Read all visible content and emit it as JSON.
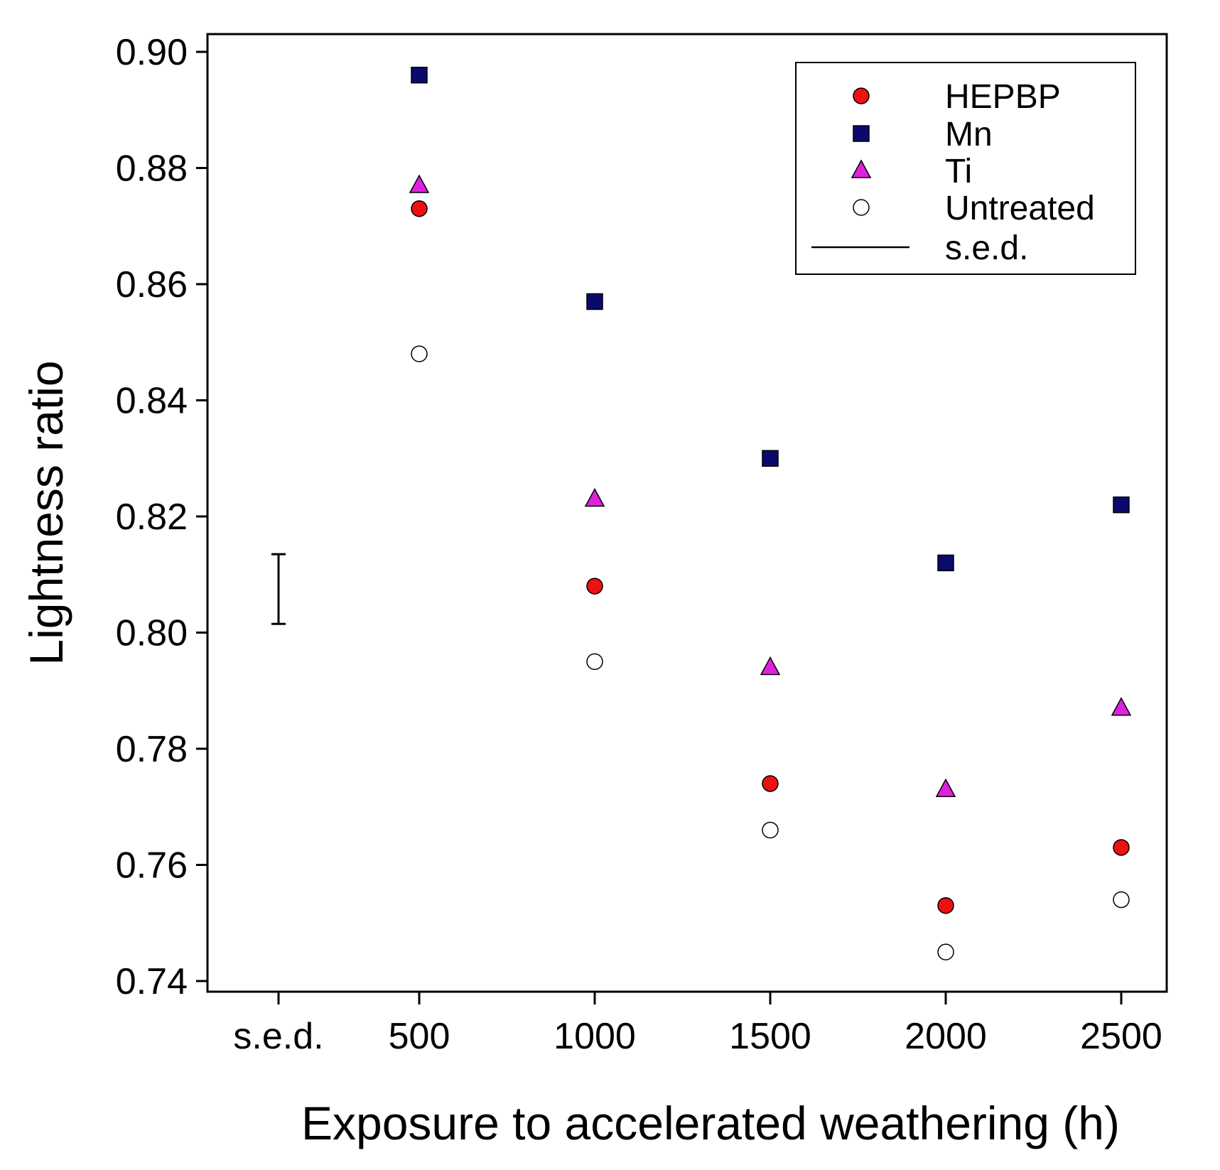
{
  "chart_data": {
    "type": "scatter",
    "title": "",
    "xlabel": "Exposure to accelerated weathering (h)",
    "ylabel": "Lightness ratio",
    "x": [
      500,
      1000,
      1500,
      2000,
      2500
    ],
    "x_tick_labels": [
      "s.e.d.",
      "500",
      "1000",
      "1500",
      "2000",
      "2500"
    ],
    "y_tick_labels": [
      "0.74",
      "0.76",
      "0.78",
      "0.80",
      "0.82",
      "0.84",
      "0.86",
      "0.88",
      "0.90"
    ],
    "ylim": [
      0.74,
      0.9
    ],
    "y_ticks": [
      0.74,
      0.76,
      0.78,
      0.8,
      0.82,
      0.84,
      0.86,
      0.88,
      0.9
    ],
    "grid": false,
    "legend_position": "top-right",
    "series": [
      {
        "name": "HEPBP",
        "marker": "circle",
        "color": "#ee1111",
        "values": [
          0.873,
          0.808,
          0.774,
          0.753,
          0.763
        ]
      },
      {
        "name": "Mn",
        "marker": "square",
        "color": "#0a0a6e",
        "values": [
          0.896,
          0.857,
          0.83,
          0.812,
          0.822
        ]
      },
      {
        "name": "Ti",
        "marker": "triangle",
        "color": "#dd22dd",
        "values": [
          0.877,
          0.823,
          0.794,
          0.773,
          0.787
        ]
      },
      {
        "name": "Untreated",
        "marker": "open-circle",
        "color": "#ffffff",
        "values": [
          0.848,
          0.795,
          0.766,
          0.745,
          0.754
        ]
      }
    ],
    "sed": {
      "label": "s.e.d.",
      "low": 0.8015,
      "high": 0.8135
    }
  }
}
